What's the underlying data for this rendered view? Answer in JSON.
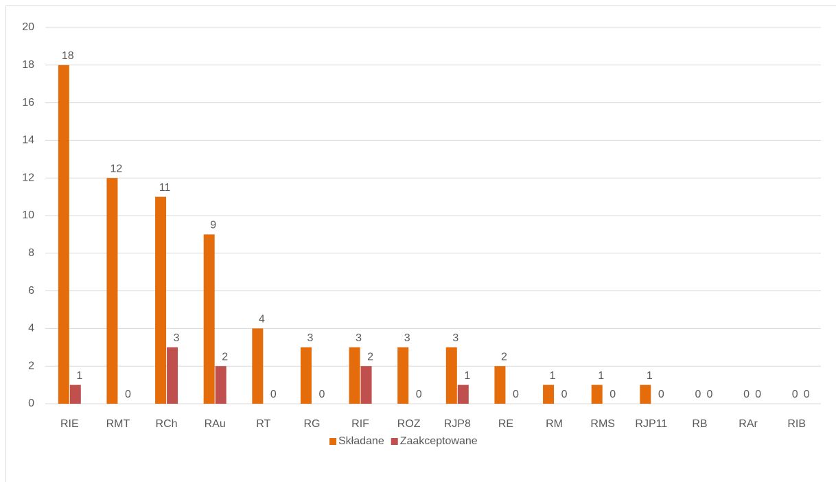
{
  "chart_data": {
    "type": "bar",
    "categories": [
      "RIE",
      "RMT",
      "RCh",
      "RAu",
      "RT",
      "RG",
      "RIF",
      "ROZ",
      "RJP8",
      "RE",
      "RM",
      "RMS",
      "RJP11",
      "RB",
      "RAr",
      "RIB"
    ],
    "series": [
      {
        "name": "Składane",
        "color": "#e46c0a",
        "values": [
          18,
          12,
          11,
          9,
          4,
          3,
          3,
          3,
          3,
          2,
          1,
          1,
          1,
          0,
          0,
          0
        ]
      },
      {
        "name": "Zaakceptowane",
        "color": "#c0504d",
        "values": [
          1,
          0,
          3,
          2,
          0,
          0,
          2,
          0,
          1,
          0,
          0,
          0,
          0,
          0,
          0,
          0
        ]
      }
    ],
    "ylim": [
      0,
      20
    ],
    "yticks": [
      0,
      2,
      4,
      6,
      8,
      10,
      12,
      14,
      16,
      18,
      20
    ],
    "grid": true,
    "legend": "bottom"
  }
}
